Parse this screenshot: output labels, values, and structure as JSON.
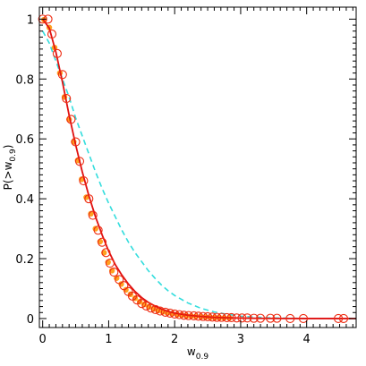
{
  "chart_data": {
    "type": "line",
    "title": "",
    "xlabel": {
      "main": "w",
      "sub": "0.9"
    },
    "ylabel": {
      "prefix": "P(>w",
      "sub": "0.9",
      "suffix": ")"
    },
    "xlim": [
      -0.05,
      4.75
    ],
    "ylim": [
      -0.03,
      1.04
    ],
    "xticks": [
      0,
      1,
      2,
      3,
      4
    ],
    "yticks": [
      0,
      0.2,
      0.4,
      0.6,
      0.8,
      1
    ],
    "xtick_labels": [
      "0",
      "1",
      "2",
      "3",
      "4"
    ],
    "ytick_labels": [
      "0",
      "0.2",
      "0.4",
      "0.6",
      "0.8",
      "1"
    ],
    "grid": false,
    "colors": {
      "fit_line": "#e01010",
      "model_dashed": "#33dddd",
      "sample_points": "#ffa020",
      "circles": "#ee2a10"
    },
    "series": [
      {
        "kind": "solid-line",
        "color": "#e01010",
        "x": [
          0,
          0.1,
          0.2,
          0.3,
          0.4,
          0.5,
          0.6,
          0.7,
          0.8,
          0.9,
          1.0,
          1.1,
          1.2,
          1.3,
          1.4,
          1.5,
          1.6,
          1.7,
          1.8,
          1.9,
          2.0,
          2.2,
          2.4,
          2.6,
          2.8,
          3.0,
          3.3,
          3.6,
          4.0,
          4.75
        ],
        "y": [
          1.0,
          0.97,
          0.89,
          0.79,
          0.68,
          0.58,
          0.49,
          0.41,
          0.34,
          0.28,
          0.225,
          0.18,
          0.145,
          0.115,
          0.09,
          0.07,
          0.054,
          0.042,
          0.032,
          0.024,
          0.018,
          0.011,
          0.007,
          0.004,
          0.0025,
          0.0015,
          0.0007,
          0.0003,
          0.0001,
          0.0
        ]
      },
      {
        "kind": "dashed-line",
        "color": "#33dddd",
        "x": [
          0,
          0.1,
          0.2,
          0.3,
          0.4,
          0.5,
          0.6,
          0.7,
          0.8,
          0.9,
          1.0,
          1.1,
          1.2,
          1.3,
          1.4,
          1.5,
          1.6,
          1.7,
          1.8,
          1.9,
          2.0,
          2.2,
          2.4,
          2.6,
          2.8,
          3.0,
          3.2,
          3.5,
          4.0,
          4.75
        ],
        "y": [
          0.96,
          0.92,
          0.86,
          0.8,
          0.74,
          0.67,
          0.61,
          0.55,
          0.49,
          0.435,
          0.385,
          0.34,
          0.295,
          0.255,
          0.22,
          0.19,
          0.16,
          0.135,
          0.112,
          0.093,
          0.077,
          0.052,
          0.034,
          0.022,
          0.014,
          0.008,
          0.005,
          0.002,
          0.0005,
          0.0
        ]
      },
      {
        "kind": "circles",
        "color": "#ee2a10",
        "x": [
          0.0,
          0.08,
          0.14,
          0.22,
          0.3,
          0.36,
          0.43,
          0.5,
          0.56,
          0.62,
          0.7,
          0.76,
          0.84,
          0.9,
          0.96,
          1.02,
          1.08,
          1.16,
          1.23,
          1.3,
          1.36,
          1.43,
          1.5,
          1.57,
          1.64,
          1.71,
          1.78,
          1.86,
          1.93,
          2.0,
          2.07,
          2.14,
          2.21,
          2.29,
          2.36,
          2.43,
          2.5,
          2.57,
          2.64,
          2.71,
          2.79,
          2.86,
          2.94,
          3.02,
          3.1,
          3.2,
          3.3,
          3.45,
          3.55,
          3.75,
          3.95,
          4.48,
          4.56
        ],
        "y": [
          1.0,
          1.0,
          0.95,
          0.885,
          0.815,
          0.735,
          0.665,
          0.59,
          0.525,
          0.46,
          0.4,
          0.345,
          0.295,
          0.255,
          0.22,
          0.185,
          0.155,
          0.13,
          0.11,
          0.09,
          0.075,
          0.062,
          0.05,
          0.042,
          0.035,
          0.03,
          0.025,
          0.021,
          0.018,
          0.015,
          0.013,
          0.011,
          0.01,
          0.009,
          0.008,
          0.007,
          0.006,
          0.005,
          0.004,
          0.004,
          0.003,
          0.003,
          0.002,
          0.002,
          0.002,
          0.001,
          0.001,
          0.001,
          0.001,
          0.0,
          0.0,
          0.0,
          0.0
        ]
      },
      {
        "kind": "small-points",
        "color": "#ffa020",
        "x": [
          0.02,
          0.1,
          0.18,
          0.26,
          0.33,
          0.4,
          0.47,
          0.53,
          0.59,
          0.66,
          0.73,
          0.8,
          0.87,
          0.93,
          0.99,
          1.05,
          1.12,
          1.19,
          1.26,
          1.33,
          1.4,
          1.47,
          1.54,
          1.61,
          1.68,
          1.75,
          1.82,
          1.89,
          1.96,
          2.04,
          2.11,
          2.18,
          2.25,
          2.32,
          2.4,
          2.47,
          2.54,
          2.61,
          2.68,
          2.75,
          2.83
        ],
        "y": [
          0.998,
          0.972,
          0.905,
          0.82,
          0.74,
          0.665,
          0.59,
          0.528,
          0.465,
          0.405,
          0.35,
          0.3,
          0.257,
          0.22,
          0.188,
          0.16,
          0.135,
          0.115,
          0.096,
          0.081,
          0.068,
          0.056,
          0.047,
          0.039,
          0.032,
          0.027,
          0.022,
          0.019,
          0.016,
          0.013,
          0.011,
          0.009,
          0.008,
          0.007,
          0.006,
          0.005,
          0.004,
          0.003,
          0.003,
          0.002,
          0.002
        ]
      }
    ]
  }
}
